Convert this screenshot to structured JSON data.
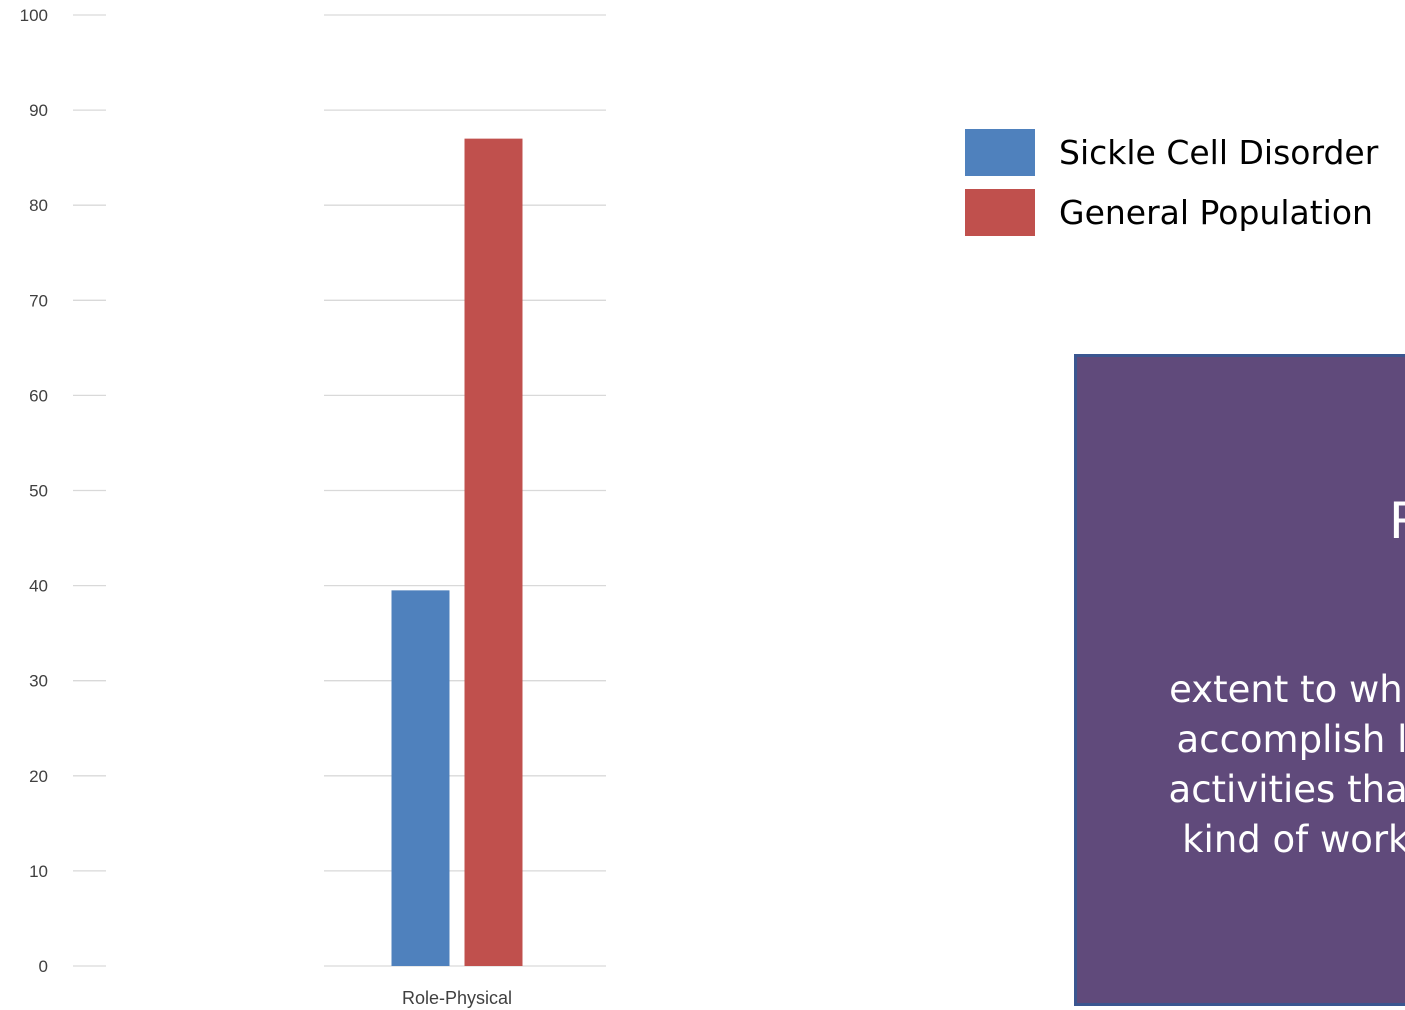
{
  "chart_data": {
    "type": "bar",
    "categories": [
      "Role-Physical"
    ],
    "series": [
      {
        "name": "Sickle Cell Disorder",
        "values": [
          39.5
        ],
        "color": "#4f81bd"
      },
      {
        "name": "General Population",
        "values": [
          87
        ],
        "color": "#c0504d"
      }
    ],
    "ylim": [
      0,
      100
    ],
    "yticks": [
      0,
      10,
      20,
      30,
      40,
      50,
      60,
      70,
      80,
      90,
      100
    ],
    "grid": true,
    "legend_placement": "right"
  },
  "info_box": {
    "title": "R",
    "lines": [
      "extent to which",
      "accomplish les",
      "activities than t",
      "kind of work o"
    ],
    "background_color": "#604a7b",
    "text_color": "#ffffff"
  }
}
